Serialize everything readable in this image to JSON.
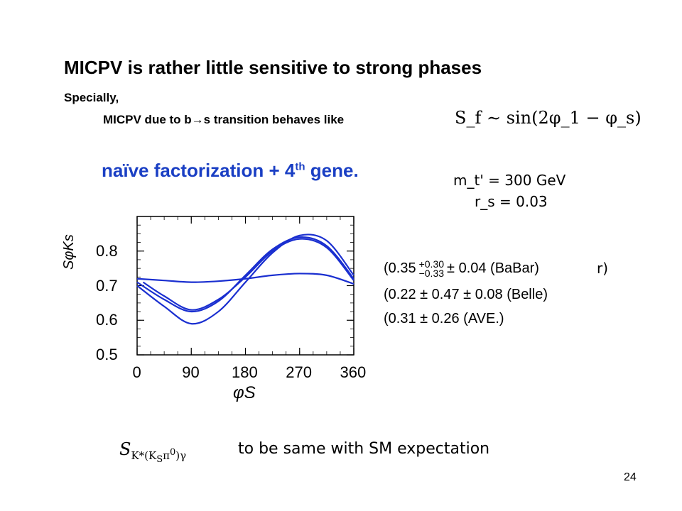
{
  "slide": {
    "title": "MICPV is rather little sensitive to strong phases",
    "line1": "Specially,",
    "line2": "MICPV due to  b→s transition behaves like",
    "formula_sf": "S_f ∼ sin(2φ_1 − φ_s)",
    "naive_main": "naïve factorization + 4",
    "naive_sup": "th",
    "naive_tail": " gene.",
    "param1": "m_t' = 300 GeV",
    "param2": "r_s = 0.03",
    "measurements": [
      {
        "text": "(0.35",
        "sup": "+0.30",
        "sub": "−0.33",
        "rest": "± 0.04 (BaBar)"
      },
      {
        "text": "(0.22 ± 0.47 ± 0.08",
        "rest": "(Belle)"
      },
      {
        "text": "(0.31 ± 0.26 (AVE.)"
      }
    ],
    "meas_tail": "r)",
    "bottom_symbol": "S",
    "bottom_symbol_sub": "K*(K",
    "bottom_symbol_sub2": "S",
    "bottom_symbol_sub3": "π",
    "bottom_symbol_sub4": "0",
    "bottom_symbol_sub5": ")γ",
    "bottom_text": "to be same with SM expectation",
    "page_number": "24"
  },
  "chart_data": {
    "type": "line",
    "xlabel": "φS",
    "ylabel": "SφKs",
    "xlim": [
      0,
      360
    ],
    "ylim": [
      0.5,
      0.9
    ],
    "x_ticks": [
      "0",
      "90",
      "180",
      "270",
      "360"
    ],
    "y_ticks": [
      "0.5",
      "0.6",
      "0.7",
      "0.8"
    ],
    "series": [
      {
        "x": [
          0,
          45,
          90,
          135,
          180,
          225,
          270,
          315,
          360
        ],
        "values": [
          0.72,
          0.715,
          0.71,
          0.713,
          0.72,
          0.73,
          0.735,
          0.73,
          0.705
        ]
      },
      {
        "x": [
          0,
          45,
          90,
          135,
          180,
          225,
          270,
          315,
          360
        ],
        "values": [
          0.71,
          0.66,
          0.625,
          0.655,
          0.73,
          0.805,
          0.84,
          0.815,
          0.72
        ]
      },
      {
        "x": [
          0,
          45,
          90,
          135,
          180,
          225,
          270,
          315,
          360
        ],
        "values": [
          0.7,
          0.64,
          0.59,
          0.625,
          0.71,
          0.795,
          0.845,
          0.83,
          0.73
        ]
      },
      {
        "x": [
          10,
          45,
          90,
          135,
          180,
          225,
          270,
          315,
          360
        ],
        "values": [
          0.71,
          0.67,
          0.63,
          0.66,
          0.725,
          0.8,
          0.835,
          0.81,
          0.715
        ]
      }
    ]
  }
}
